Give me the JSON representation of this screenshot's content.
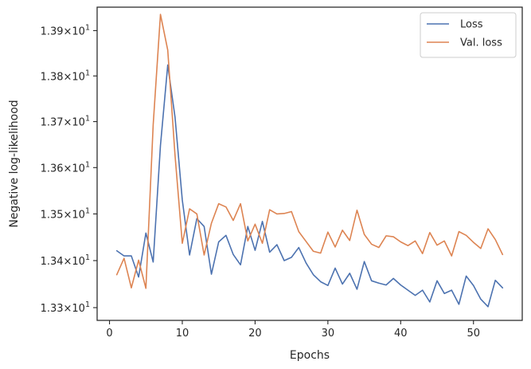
{
  "chart_data": {
    "type": "line",
    "xlabel": "Epochs",
    "ylabel": "Negative log-likelihood",
    "xlim": [
      -1.7,
      56.7
    ],
    "ylim": [
      13.273,
      13.952
    ],
    "yscale": "log",
    "grid": false,
    "legend_position": "top-right",
    "x_ticks": [
      0,
      10,
      20,
      30,
      40,
      50
    ],
    "x_tick_labels": [
      "0",
      "10",
      "20",
      "30",
      "40",
      "50"
    ],
    "y_ticks": [
      13.3,
      13.4,
      13.5,
      13.6,
      13.7,
      13.8,
      13.9
    ],
    "y_tick_labels": [
      {
        "mantissa": "1.33",
        "sep": "×",
        "base": "10",
        "exp": "1"
      },
      {
        "mantissa": "1.34",
        "sep": "×",
        "base": "10",
        "exp": "1"
      },
      {
        "mantissa": "1.35",
        "sep": "×",
        "base": "10",
        "exp": "1"
      },
      {
        "mantissa": "1.36",
        "sep": "×",
        "base": "10",
        "exp": "1"
      },
      {
        "mantissa": "1.37",
        "sep": "×",
        "base": "10",
        "exp": "1"
      },
      {
        "mantissa": "1.38",
        "sep": "×",
        "base": "10",
        "exp": "1"
      },
      {
        "mantissa": "1.39",
        "sep": "×",
        "base": "10",
        "exp": "1"
      }
    ],
    "x": [
      1,
      2,
      3,
      4,
      5,
      6,
      7,
      8,
      9,
      10,
      11,
      12,
      13,
      14,
      15,
      16,
      17,
      18,
      19,
      20,
      21,
      22,
      23,
      24,
      25,
      26,
      27,
      28,
      29,
      30,
      31,
      32,
      33,
      34,
      35,
      36,
      37,
      38,
      39,
      40,
      41,
      42,
      43,
      44,
      45,
      46,
      47,
      48,
      49,
      50,
      51,
      52,
      53,
      54
    ],
    "series": [
      {
        "name": "Loss",
        "color": "#4c72b0",
        "values": [
          13.421,
          13.41,
          13.41,
          13.365,
          13.459,
          13.397,
          13.648,
          13.824,
          13.71,
          13.53,
          13.412,
          13.49,
          13.473,
          13.371,
          13.44,
          13.454,
          13.413,
          13.391,
          13.473,
          13.422,
          13.484,
          13.418,
          13.434,
          13.4,
          13.407,
          13.428,
          13.395,
          13.37,
          13.355,
          13.347,
          13.384,
          13.35,
          13.373,
          13.339,
          13.398,
          13.357,
          13.352,
          13.348,
          13.362,
          13.348,
          13.337,
          13.326,
          13.337,
          13.312,
          13.357,
          13.33,
          13.337,
          13.307,
          13.367,
          13.347,
          13.318,
          13.302,
          13.358,
          13.342
        ]
      },
      {
        "name": "Val. loss",
        "color": "#dd8452",
        "values": [
          13.37,
          13.405,
          13.342,
          13.401,
          13.341,
          13.693,
          13.936,
          13.857,
          13.627,
          13.437,
          13.511,
          13.5,
          13.412,
          13.48,
          13.522,
          13.515,
          13.486,
          13.522,
          13.442,
          13.478,
          13.437,
          13.509,
          13.5,
          13.501,
          13.505,
          13.462,
          13.441,
          13.42,
          13.416,
          13.461,
          13.429,
          13.465,
          13.443,
          13.508,
          13.456,
          13.435,
          13.428,
          13.453,
          13.451,
          13.44,
          13.432,
          13.442,
          13.415,
          13.46,
          13.433,
          13.442,
          13.41,
          13.462,
          13.454,
          13.439,
          13.426,
          13.468,
          13.445,
          13.413
        ]
      }
    ]
  }
}
